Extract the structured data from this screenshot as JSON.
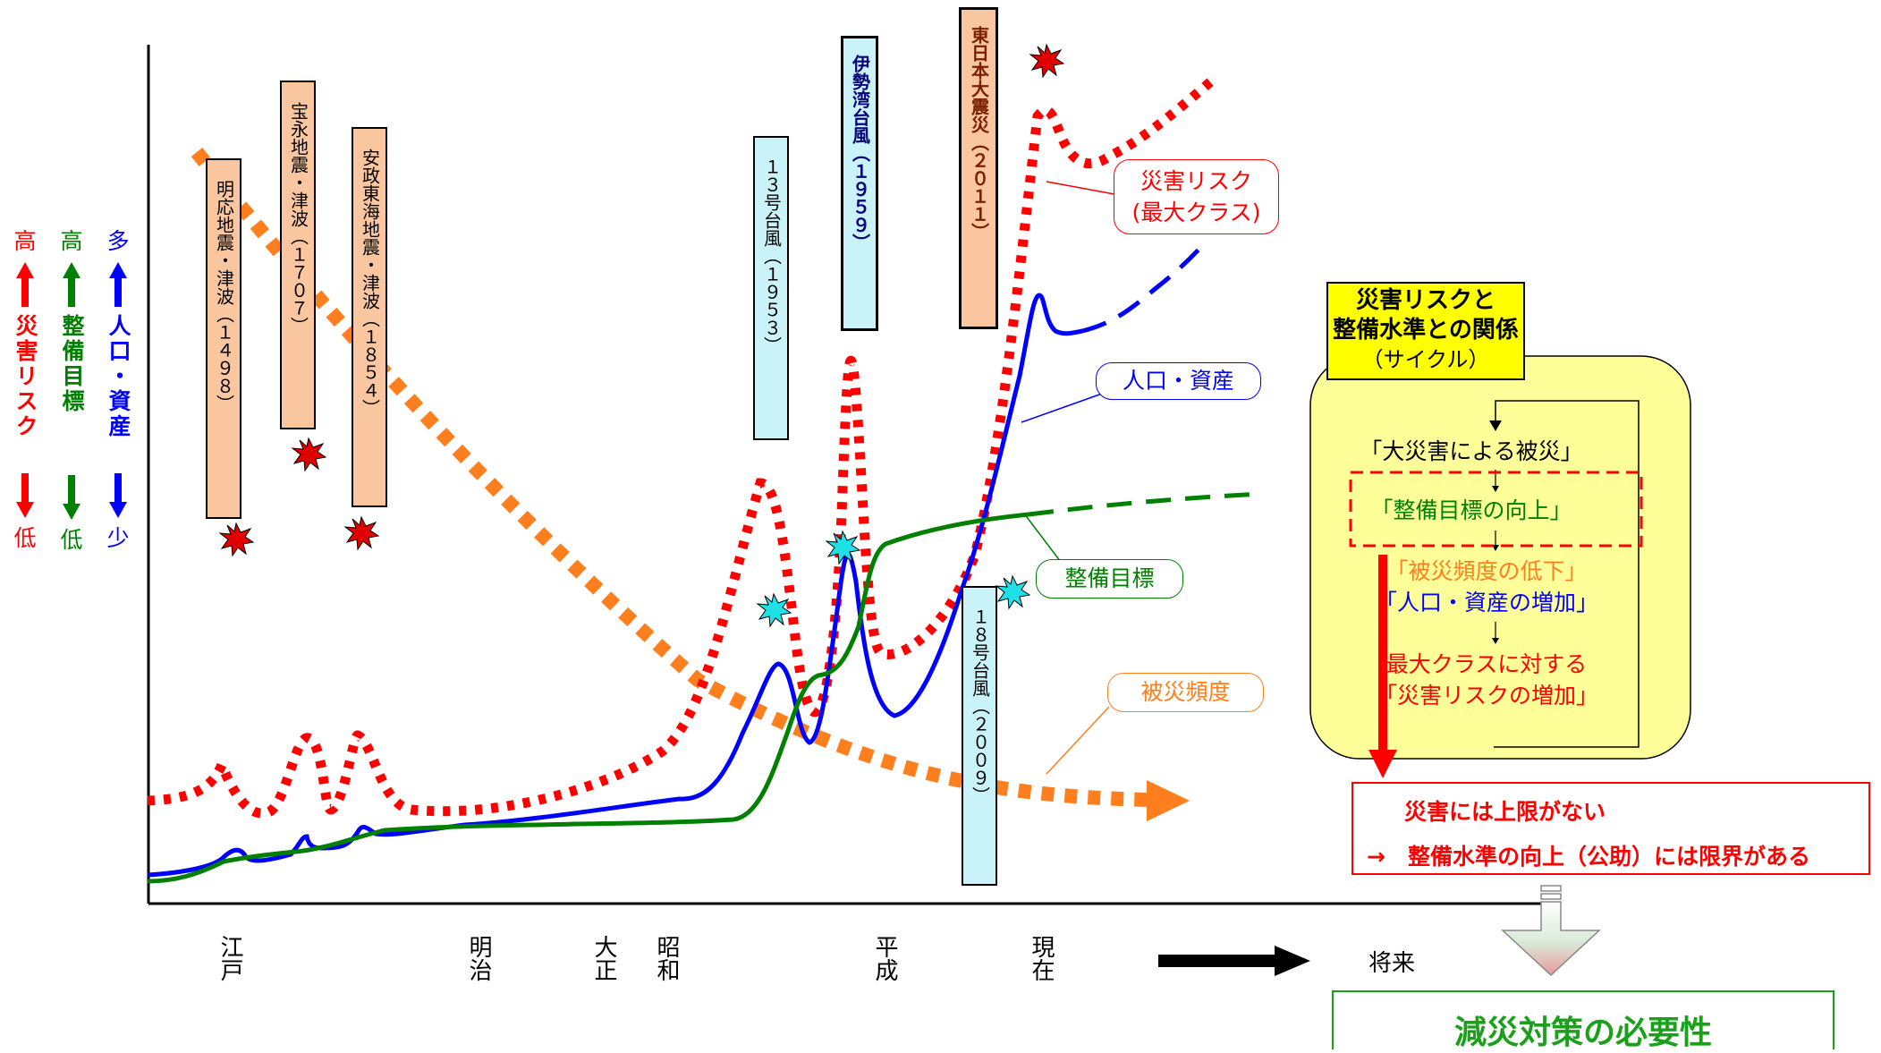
{
  "legend": {
    "risk": {
      "top": "高",
      "label": "災害リスク",
      "bottom": "低",
      "color": "#ff0000"
    },
    "target": {
      "top": "高",
      "label": "整備目標",
      "bottom": "低",
      "color": "#008000"
    },
    "assets": {
      "top": "多",
      "label": "人口・資産",
      "bottom": "少",
      "color": "#0000ff"
    }
  },
  "events": [
    {
      "label": "明応地震・津波（１４９８）",
      "style": "orange"
    },
    {
      "label": "宝永地震・津波（１７０７）",
      "style": "orange"
    },
    {
      "label": "安政東海地震・津波（１８５４）",
      "style": "orange"
    },
    {
      "label": "１３号台風（１９５３）",
      "style": "cyan"
    },
    {
      "label": "伊勢湾台風（１９５９）",
      "style": "cyan"
    },
    {
      "label": "東日本大震災（２０１１）",
      "style": "orange"
    },
    {
      "label": "１８号台風（２００９）",
      "style": "cyan"
    }
  ],
  "callouts": {
    "risk": {
      "line1": "災害リスク",
      "line2": "(最大クラス)"
    },
    "assets": "人口・資産",
    "target": "整備目標",
    "frequency": "被災頻度"
  },
  "eras": [
    "江戸",
    "明治",
    "大正",
    "昭和",
    "平成",
    "現在"
  ],
  "future": "将来",
  "cycle": {
    "title_line1": "災害リスクと",
    "title_line2": "整備水準との関係",
    "title_line3": "（サイクル）",
    "step1": "「大災害による被災」",
    "step2": "「整備目標の向上」",
    "step3a": "「被災頻度の低下」",
    "step3b": "「人口・資産の増加」",
    "step4a": "最大クラスに対する",
    "step4b": "「災害リスクの増加」"
  },
  "limits": {
    "line1": "災害には上限がない",
    "line2": "→　整備水準の向上（公助）には限界がある"
  },
  "conclusion": "減災対策の必要性",
  "colors": {
    "risk": "#ff0000",
    "target": "#008000",
    "assets": "#0000ff",
    "frequency": "#ff7f1f",
    "cycle_bg": "#ffff99",
    "title_bg": "#ffff00"
  }
}
